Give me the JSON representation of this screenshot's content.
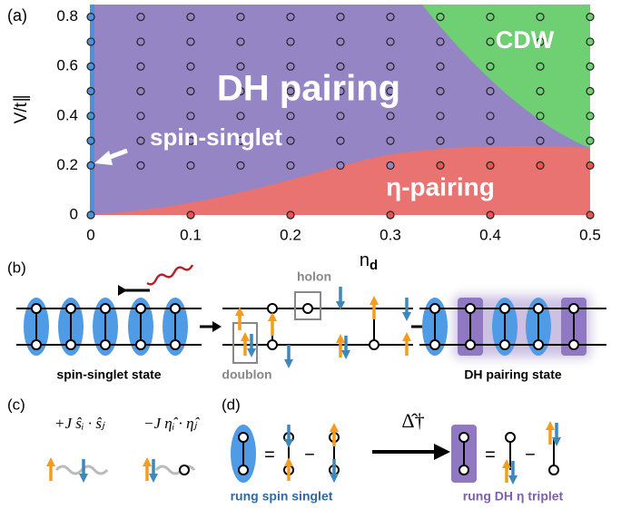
{
  "chart_data": {
    "type": "scatter",
    "panel_label": "(a)",
    "xlabel": "n",
    "xlabel_subscript": "d",
    "ylabel": "V/t∥",
    "xlim": [
      0,
      0.5
    ],
    "ylim": [
      0,
      0.85
    ],
    "xticks": [
      0,
      0.1,
      0.2,
      0.3,
      0.4,
      0.5
    ],
    "yticks": [
      0,
      0.2,
      0.4,
      0.6,
      0.8
    ],
    "series": [
      {
        "name": "spin-singlet",
        "color": "#4a93dc",
        "x": [
          0,
          0,
          0,
          0,
          0,
          0,
          0,
          0
        ],
        "y": [
          0,
          0.2,
          0.3,
          0.4,
          0.5,
          0.6,
          0.7,
          0.8
        ]
      },
      {
        "name": "DH pairing",
        "color": "#9585c5",
        "x": [
          0.05,
          0.1,
          0.15,
          0.2,
          0.25,
          0.3,
          0.05,
          0.1,
          0.15,
          0.2,
          0.25,
          0.3,
          0.35,
          0.05,
          0.1,
          0.15,
          0.2,
          0.25,
          0.3,
          0.35,
          0.05,
          0.1,
          0.15,
          0.2,
          0.25,
          0.3,
          0.35,
          0.4,
          0.05,
          0.1,
          0.15,
          0.2,
          0.25,
          0.3,
          0.35,
          0.4,
          0.05,
          0.1,
          0.15,
          0.2,
          0.25,
          0.3,
          0.35,
          0.4,
          0.45,
          0.05,
          0.1,
          0.15,
          0.2,
          0.25,
          0.3
        ],
        "y": [
          0.8,
          0.8,
          0.8,
          0.8,
          0.8,
          0.8,
          0.7,
          0.7,
          0.7,
          0.7,
          0.7,
          0.7,
          0.7,
          0.6,
          0.6,
          0.6,
          0.6,
          0.6,
          0.6,
          0.6,
          0.5,
          0.5,
          0.5,
          0.5,
          0.5,
          0.5,
          0.5,
          0.5,
          0.4,
          0.4,
          0.4,
          0.4,
          0.4,
          0.4,
          0.4,
          0.4,
          0.3,
          0.3,
          0.3,
          0.3,
          0.3,
          0.3,
          0.3,
          0.3,
          0.3,
          0.2,
          0.2,
          0.2,
          0.2,
          0.2,
          0.2
        ]
      },
      {
        "name": "CDW",
        "color": "#6fcf73",
        "x": [
          0.35,
          0.4,
          0.45,
          0.5,
          0.4,
          0.45,
          0.5,
          0.4,
          0.45,
          0.5,
          0.45,
          0.5,
          0.45,
          0.5,
          0.5
        ],
        "y": [
          0.8,
          0.8,
          0.8,
          0.8,
          0.7,
          0.7,
          0.7,
          0.6,
          0.6,
          0.6,
          0.5,
          0.5,
          0.4,
          0.4,
          0.3
        ]
      },
      {
        "name": "η-pairing",
        "color": "#e9554f",
        "x": [
          0.35,
          0.4,
          0.45,
          0.5,
          0.1,
          0.2,
          0.3,
          0.4,
          0.5
        ],
        "y": [
          0.2,
          0.2,
          0.2,
          0.2,
          0,
          0,
          0,
          0,
          0
        ]
      }
    ]
  },
  "panels": {
    "b": {
      "label": "(b)",
      "left_caption": "spin-singlet state",
      "doublon": "doublon",
      "holon": "holon",
      "right_caption": "DH pairing state"
    },
    "c": {
      "label": "(c)",
      "spin_term": "+J ŝᵢ · ŝⱼ",
      "eta_term": "−J η̂ᵢ · η̂ⱼ"
    },
    "d": {
      "label": "(d)",
      "equals": "=",
      "minus": "−",
      "operator": "Δ̂†",
      "singlet_caption": "rung spin singlet",
      "triplet_caption": "rung DH η triplet"
    }
  }
}
